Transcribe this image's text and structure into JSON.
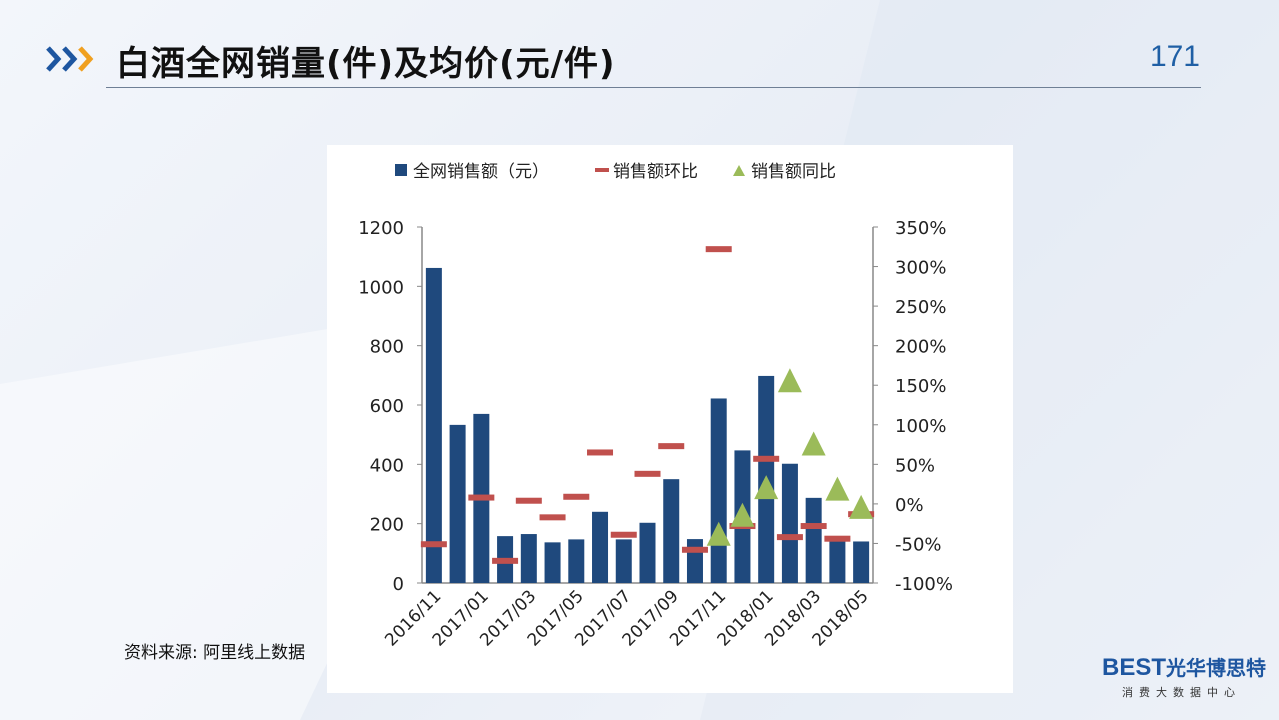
{
  "header": {
    "title": "白酒全网销量(件)及均价(元/件)",
    "page_number": "171"
  },
  "source": "资料来源: 阿里线上数据",
  "logo": {
    "brand": "BEST",
    "brand_cn": "光华博思特",
    "sub": "消费大数据中心"
  },
  "colors": {
    "bar": "#1f497d",
    "mom": "#c0504d",
    "yoy": "#9bbb59",
    "accent": "#1e56a0",
    "chevron_orange": "#f0a020"
  },
  "chart_data": {
    "type": "bar",
    "categories": [
      "2016/11",
      "2016/12",
      "2017/01",
      "2017/02",
      "2017/03",
      "2017/04",
      "2017/05",
      "2017/06",
      "2017/07",
      "2017/08",
      "2017/09",
      "2017/10",
      "2017/11",
      "2017/12",
      "2018/01",
      "2018/02",
      "2018/03",
      "2018/04",
      "2018/05"
    ],
    "x_tick_labels": [
      "2016/11",
      "",
      "2017/01",
      "",
      "2017/03",
      "",
      "2017/05",
      "",
      "2017/07",
      "",
      "2017/09",
      "",
      "2017/11",
      "",
      "2018/01",
      "",
      "2018/03",
      "",
      "2018/05"
    ],
    "series": [
      {
        "name": "全网销售额（元）",
        "type": "bar",
        "axis": "left",
        "values": [
          1062,
          533,
          570,
          158,
          165,
          137,
          147,
          240,
          147,
          203,
          350,
          148,
          622,
          447,
          698,
          402,
          287,
          147,
          140
        ]
      },
      {
        "name": "销售额环比",
        "type": "dash",
        "axis": "right",
        "values": [
          -51,
          null,
          8,
          -72,
          4,
          -17,
          9,
          65,
          -39,
          38,
          73,
          -58,
          322,
          -28,
          57,
          -42,
          -28,
          -44,
          -13
        ]
      },
      {
        "name": "销售额同比",
        "type": "triangle",
        "axis": "right",
        "values": [
          null,
          null,
          null,
          null,
          null,
          null,
          null,
          null,
          null,
          null,
          null,
          null,
          -39,
          -15,
          20,
          155,
          75,
          18,
          -5
        ]
      }
    ],
    "ylim_left": [
      0,
      1200
    ],
    "yticks_left": [
      0,
      200,
      400,
      600,
      800,
      1000,
      1200
    ],
    "ylim_right": [
      -100,
      350
    ],
    "yticks_right": [
      "-100%",
      "-50%",
      "0%",
      "50%",
      "100%",
      "150%",
      "200%",
      "250%",
      "300%",
      "350%"
    ],
    "legend_position": "top"
  }
}
